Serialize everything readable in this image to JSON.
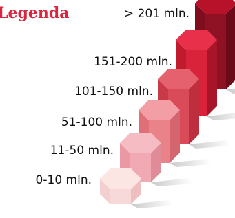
{
  "title": "Legenda",
  "items": [
    {
      "label": "0-10 mln."
    },
    {
      "label": "11-50 mln."
    },
    {
      "label": "51-100 mln."
    },
    {
      "label": "101-150 mln."
    },
    {
      "label": "151-200 mln."
    },
    {
      "label": "> 201 mln."
    }
  ]
}
